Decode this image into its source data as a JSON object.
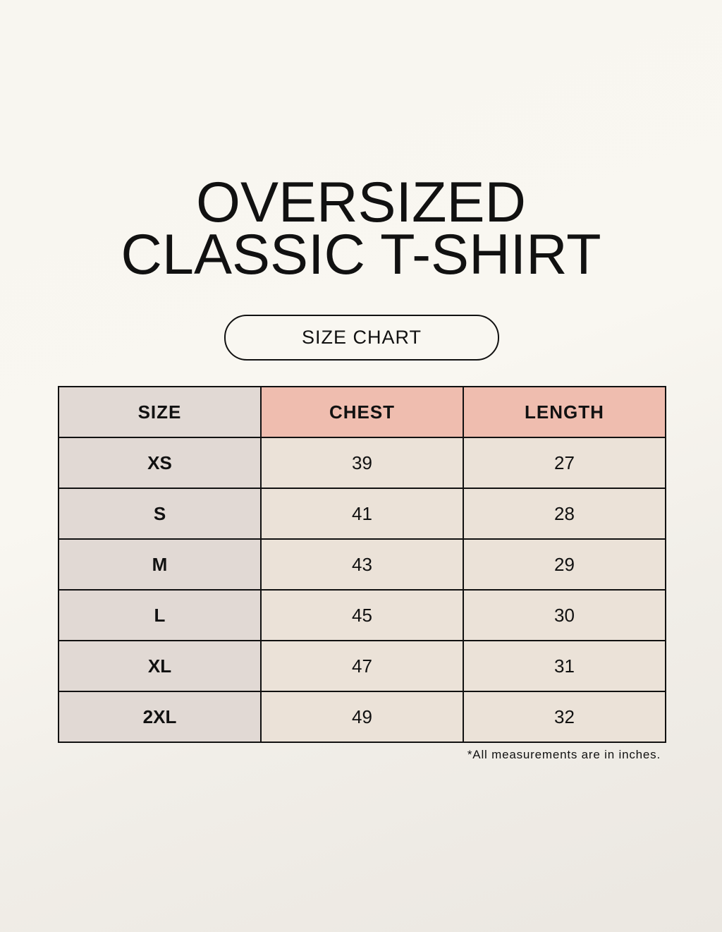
{
  "title_line1": "OVERSIZED",
  "title_line2": "CLASSIC T-SHIRT",
  "badge": "SIZE CHART",
  "colors": {
    "header_accent": "#efbdaf",
    "size_column": "#e1d9d4",
    "cell": "#ebe2d8"
  },
  "table": {
    "headers": [
      "SIZE",
      "CHEST",
      "LENGTH"
    ],
    "rows": [
      [
        "XS",
        "39",
        "27"
      ],
      [
        "S",
        "41",
        "28"
      ],
      [
        "M",
        "43",
        "29"
      ],
      [
        "L",
        "45",
        "30"
      ],
      [
        "XL",
        "47",
        "31"
      ],
      [
        "2XL",
        "49",
        "32"
      ]
    ]
  },
  "note": "*All measurements are in inches."
}
